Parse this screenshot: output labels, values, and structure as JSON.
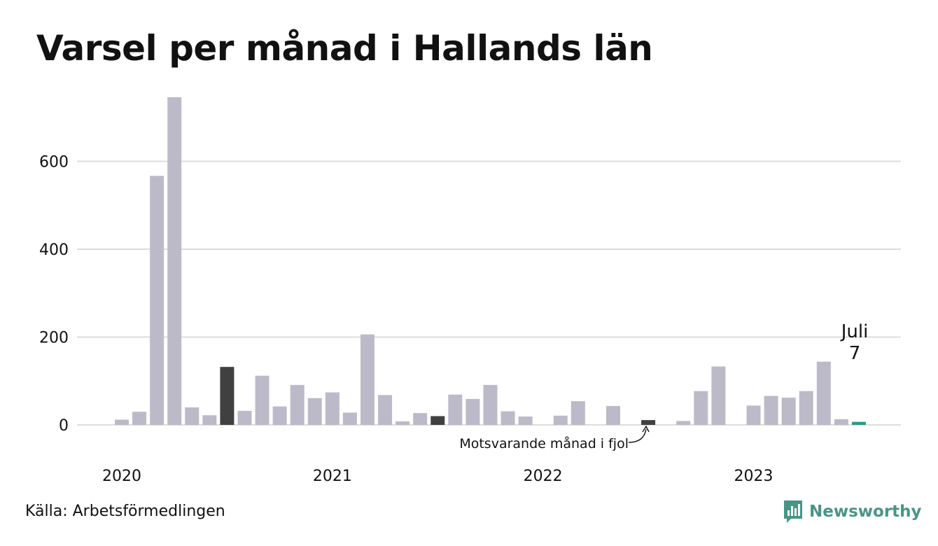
{
  "chart_data": {
    "type": "bar",
    "title": "Varsel per månad i Hallands län",
    "xlabel": "",
    "ylabel": "",
    "ylim": [
      0,
      760
    ],
    "yticks": [
      0,
      200,
      400,
      600
    ],
    "grid": true,
    "x_tick_labels": [
      "2020",
      "2021",
      "2022",
      "2023"
    ],
    "categories": [
      "2020-01",
      "2020-02",
      "2020-03",
      "2020-04",
      "2020-05",
      "2020-06",
      "2020-07",
      "2020-08",
      "2020-09",
      "2020-10",
      "2020-11",
      "2020-12",
      "2021-01",
      "2021-02",
      "2021-03",
      "2021-04",
      "2021-05",
      "2021-06",
      "2021-07",
      "2021-08",
      "2021-09",
      "2021-10",
      "2021-11",
      "2021-12",
      "2022-01",
      "2022-02",
      "2022-03",
      "2022-04",
      "2022-05",
      "2022-06",
      "2022-07",
      "2022-08",
      "2022-09",
      "2022-10",
      "2022-11",
      "2022-12",
      "2023-01",
      "2023-02",
      "2023-03",
      "2023-04",
      "2023-05",
      "2023-06",
      "2023-07"
    ],
    "values": [
      12,
      30,
      567,
      746,
      40,
      22,
      132,
      32,
      112,
      42,
      91,
      61,
      74,
      28,
      206,
      68,
      8,
      27,
      20,
      69,
      59,
      91,
      31,
      19,
      0,
      21,
      54,
      0,
      43,
      0,
      11,
      0,
      9,
      77,
      133,
      0,
      44,
      66,
      62,
      77,
      144,
      13,
      7
    ],
    "highlight_same_month_previous_years": [
      "2020-07",
      "2021-07",
      "2022-07"
    ],
    "current": {
      "category": "2023-07",
      "label_month": "Juli",
      "label_value": "7"
    },
    "annotation": "Motsvarande månad i fjol",
    "colors": {
      "bar": "#bcbac8",
      "previous": "#404040",
      "current": "#2a9a8c",
      "grid": "#dddddd"
    }
  },
  "source": "Källa: Arbetsförmedlingen",
  "brand": "Newsworthy"
}
